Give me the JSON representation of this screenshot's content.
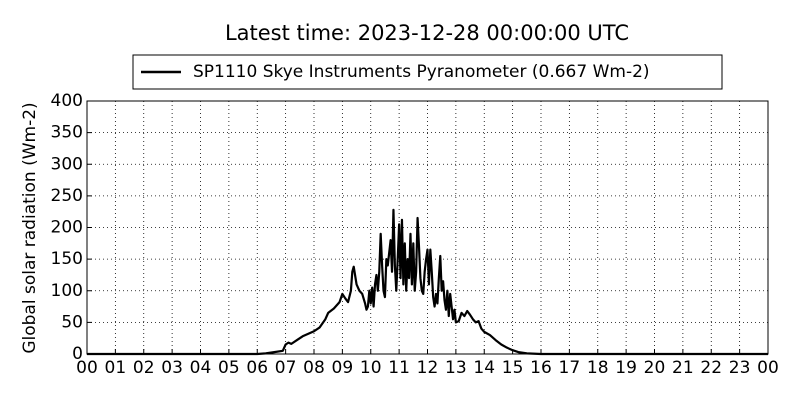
{
  "chart_data": {
    "type": "line",
    "title": "Latest time: 2023-12-28 00:00:00 UTC",
    "y_label": "Global solar radiation (Wm-2)",
    "legend_position": "top-center",
    "grid": true,
    "xlim": [
      0,
      24
    ],
    "ylim": [
      0,
      400
    ],
    "yticks": [
      0,
      50,
      100,
      150,
      200,
      250,
      300,
      350,
      400
    ],
    "xticks": [
      {
        "value": 0,
        "label": "00"
      },
      {
        "value": 1,
        "label": "01"
      },
      {
        "value": 2,
        "label": "02"
      },
      {
        "value": 3,
        "label": "03"
      },
      {
        "value": 4,
        "label": "04"
      },
      {
        "value": 5,
        "label": "05"
      },
      {
        "value": 6,
        "label": "06"
      },
      {
        "value": 7,
        "label": "07"
      },
      {
        "value": 8,
        "label": "08"
      },
      {
        "value": 9,
        "label": "09"
      },
      {
        "value": 10,
        "label": "10"
      },
      {
        "value": 11,
        "label": "11"
      },
      {
        "value": 12,
        "label": "12"
      },
      {
        "value": 13,
        "label": "13"
      },
      {
        "value": 14,
        "label": "14"
      },
      {
        "value": 15,
        "label": "15"
      },
      {
        "value": 16,
        "label": "16"
      },
      {
        "value": 17,
        "label": "17"
      },
      {
        "value": 18,
        "label": "18"
      },
      {
        "value": 19,
        "label": "19"
      },
      {
        "value": 20,
        "label": "20"
      },
      {
        "value": 21,
        "label": "21"
      },
      {
        "value": 22,
        "label": "22"
      },
      {
        "value": 23,
        "label": "23"
      },
      {
        "value": 24,
        "label": "00"
      }
    ],
    "x": [
      0,
      6,
      6.3,
      6.6,
      6.9,
      7,
      7.1,
      7.2,
      7.4,
      7.6,
      7.8,
      8,
      8.2,
      8.4,
      8.5,
      8.7,
      8.9,
      9,
      9.1,
      9.2,
      9.3,
      9.35,
      9.4,
      9.5,
      9.6,
      9.7,
      9.8,
      9.85,
      9.9,
      9.95,
      10,
      10.05,
      10.1,
      10.15,
      10.2,
      10.25,
      10.3,
      10.35,
      10.4,
      10.45,
      10.5,
      10.55,
      10.6,
      10.65,
      10.7,
      10.75,
      10.8,
      10.85,
      10.9,
      10.95,
      11,
      11.05,
      11.1,
      11.15,
      11.2,
      11.25,
      11.3,
      11.35,
      11.4,
      11.45,
      11.5,
      11.55,
      11.6,
      11.65,
      11.7,
      11.75,
      11.8,
      11.85,
      11.9,
      11.95,
      12,
      12.05,
      12.1,
      12.15,
      12.2,
      12.25,
      12.3,
      12.35,
      12.4,
      12.45,
      12.5,
      12.55,
      12.6,
      12.65,
      12.7,
      12.75,
      12.8,
      12.85,
      12.9,
      12.95,
      13,
      13.1,
      13.2,
      13.3,
      13.4,
      13.5,
      13.6,
      13.7,
      13.8,
      13.9,
      14,
      14.2,
      14.4,
      14.6,
      14.8,
      15,
      15.2,
      15.5,
      16,
      24
    ],
    "series": [
      {
        "name": "SP1110 Skye Instruments Pyranometer (0.667 Wm-2)",
        "color": "#000000",
        "values": [
          0,
          0,
          1,
          3,
          5,
          15,
          18,
          16,
          22,
          28,
          32,
          36,
          42,
          55,
          65,
          72,
          82,
          95,
          88,
          82,
          100,
          130,
          138,
          110,
          100,
          95,
          80,
          70,
          75,
          100,
          80,
          105,
          75,
          110,
          125,
          100,
          130,
          190,
          140,
          100,
          90,
          150,
          140,
          160,
          180,
          130,
          228,
          140,
          100,
          150,
          205,
          120,
          212,
          110,
          175,
          100,
          150,
          120,
          190,
          110,
          175,
          100,
          130,
          215,
          170,
          120,
          100,
          95,
          130,
          150,
          165,
          110,
          165,
          130,
          90,
          75,
          95,
          80,
          120,
          155,
          100,
          115,
          85,
          70,
          100,
          60,
          95,
          75,
          55,
          70,
          50,
          52,
          65,
          60,
          68,
          62,
          55,
          50,
          52,
          40,
          35,
          30,
          22,
          15,
          10,
          6,
          3,
          1,
          0,
          0
        ]
      }
    ]
  }
}
